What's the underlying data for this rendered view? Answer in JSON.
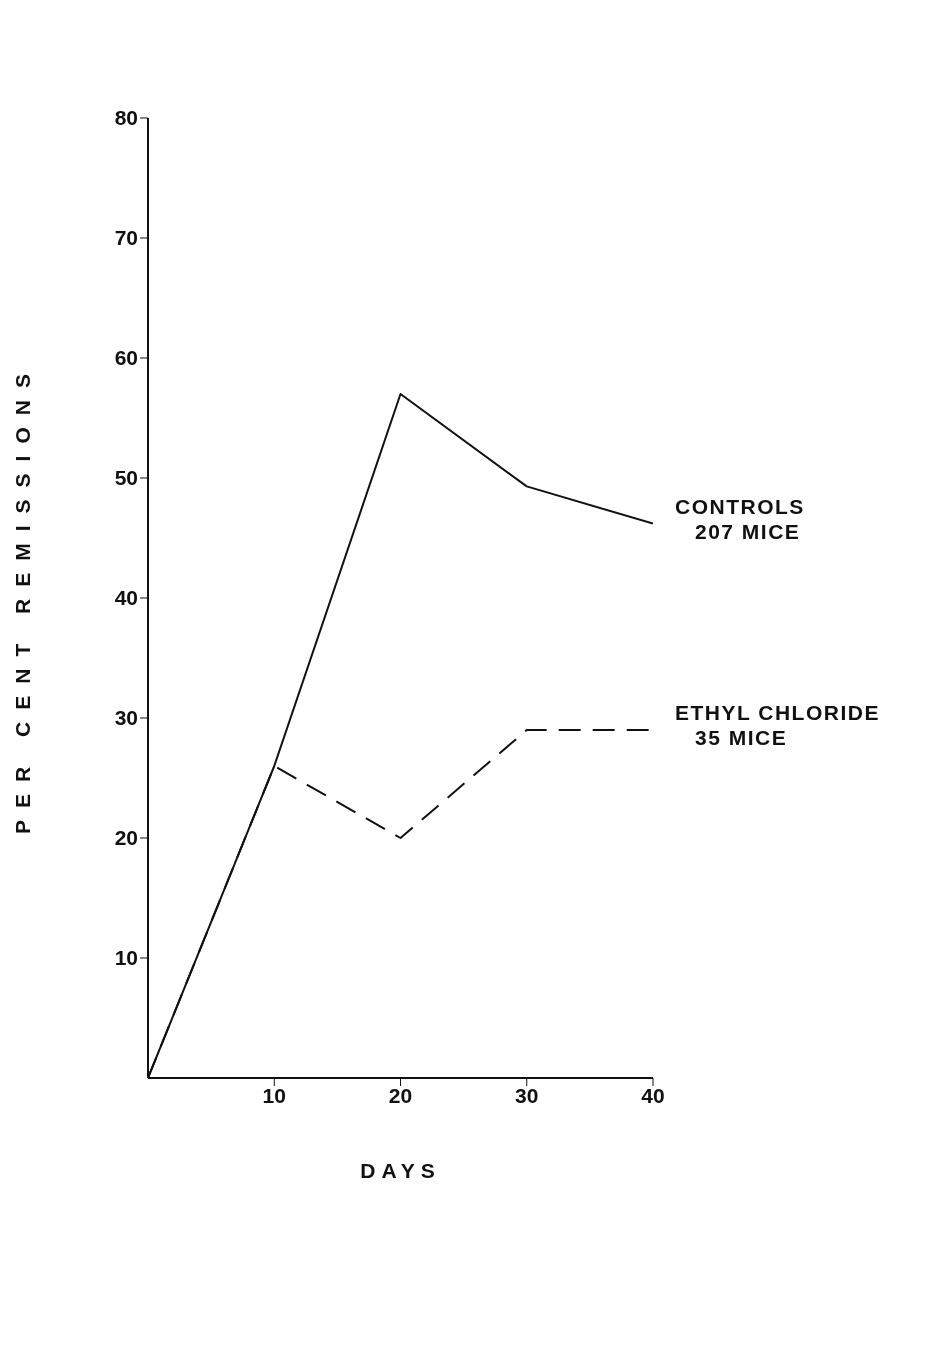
{
  "chart_data": {
    "type": "line",
    "xlabel": "DAYS",
    "ylabel": "PER CENT REMISSIONS",
    "x": [
      0,
      10,
      20,
      30,
      40
    ],
    "xlim": [
      0,
      40
    ],
    "xticks": [
      10,
      20,
      30,
      40
    ],
    "ylim": [
      0,
      80
    ],
    "yticks": [
      10,
      20,
      30,
      40,
      50,
      60,
      70,
      80
    ],
    "grid": false,
    "legend": false,
    "marker": "none",
    "series": [
      {
        "name": "CONTROLS\n207 MICE",
        "color": "#111111",
        "line_style": "solid",
        "values": [
          0,
          26,
          57,
          49.3,
          46.2
        ]
      },
      {
        "name": "ETHYL CHLORIDE\n35 MICE",
        "color": "#111111",
        "line_style": "dashed",
        "values": [
          0,
          26,
          20,
          29,
          29
        ]
      }
    ]
  }
}
